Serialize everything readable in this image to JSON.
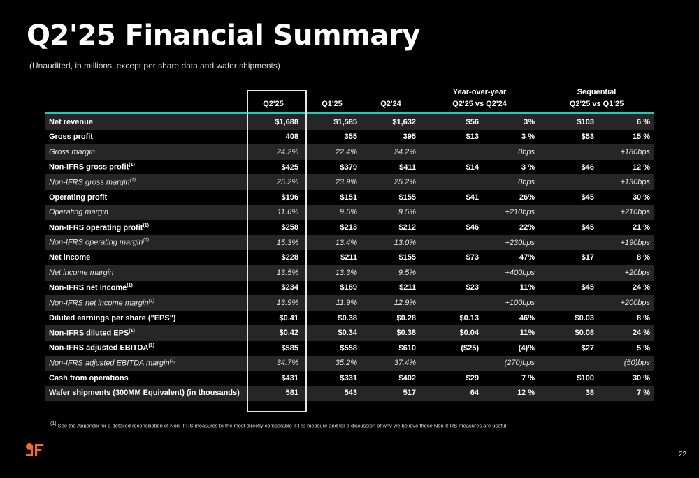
{
  "title": "Q2'25 Financial Summary",
  "subtitle": "(Unaudited, in millions, except per share data and wafer shipments)",
  "groups": {
    "yoy": "Year-over-year",
    "seq": "Sequential"
  },
  "columns": {
    "q2_25": "Q2'25",
    "q1_25": "Q1'25",
    "q2_24": "Q2'24",
    "yoy": "Q2'25 vs Q2'24",
    "seq": "Q2'25 vs Q1'25"
  },
  "rows": [
    {
      "label": "Net revenue",
      "sup": "",
      "style": "alt",
      "v": [
        "$1,688",
        "$1,585",
        "$1,632",
        "$56",
        "3%",
        "$103",
        "6 %"
      ]
    },
    {
      "label": "Gross profit",
      "sup": "",
      "style": "",
      "v": [
        "408",
        "355",
        "395",
        "$13",
        "3 %",
        "$53",
        "15 %"
      ]
    },
    {
      "label": "Gross margin",
      "sup": "",
      "style": "alt italic",
      "v": [
        "24.2%",
        "22.4%",
        "24.2%",
        "",
        "0bps",
        "",
        "+180bps"
      ]
    },
    {
      "label": "Non-IFRS gross profit",
      "sup": "(1)",
      "style": "",
      "v": [
        "$425",
        "$379",
        "$411",
        "$14",
        "3 %",
        "$46",
        "12 %"
      ]
    },
    {
      "label": "Non-IFRS gross margin",
      "sup": "(1)",
      "style": "alt italic",
      "v": [
        "25.2%",
        "23.9%",
        "25.2%",
        "",
        "0bps",
        "",
        "+130bps"
      ]
    },
    {
      "label": "Operating profit",
      "sup": "",
      "style": "",
      "v": [
        "$196",
        "$151",
        "$155",
        "$41",
        "26%",
        "$45",
        "30 %"
      ]
    },
    {
      "label": "Operating margin",
      "sup": "",
      "style": "alt italic",
      "v": [
        "11.6%",
        "9.5%",
        "9.5%",
        "",
        "+210bps",
        "",
        "+210bps"
      ]
    },
    {
      "label": "Non-IFRS operating profit",
      "sup": "(1)",
      "style": "",
      "v": [
        "$258",
        "$213",
        "$212",
        "$46",
        "22%",
        "$45",
        "21 %"
      ]
    },
    {
      "label": "Non-IFRS operating margin",
      "sup": "(1)",
      "style": "alt italic",
      "v": [
        "15.3%",
        "13.4%",
        "13.0%",
        "",
        "+230bps",
        "",
        "+190bps"
      ]
    },
    {
      "label": "Net income",
      "sup": "",
      "style": "",
      "v": [
        "$228",
        "$211",
        "$155",
        "$73",
        "47%",
        "$17",
        "8 %"
      ]
    },
    {
      "label": "Net income margin",
      "sup": "",
      "style": "alt italic",
      "v": [
        "13.5%",
        "13.3%",
        "9.5%",
        "",
        "+400bps",
        "",
        "+20bps"
      ]
    },
    {
      "label": "Non-IFRS net income",
      "sup": "(1)",
      "style": "",
      "v": [
        "$234",
        "$189",
        "$211",
        "$23",
        "11%",
        "$45",
        "24 %"
      ]
    },
    {
      "label": "Non-IFRS net income margin",
      "sup": "(1)",
      "style": "alt italic",
      "v": [
        "13.9%",
        "11.9%",
        "12.9%",
        "",
        "+100bps",
        "",
        "+200bps"
      ]
    },
    {
      "label": "Diluted earnings per share (\"EPS\")",
      "sup": "",
      "style": "",
      "v": [
        "$0.41",
        "$0.38",
        "$0.28",
        "$0.13",
        "46%",
        "$0.03",
        "8 %"
      ]
    },
    {
      "label": "Non-IFRS diluted EPS",
      "sup": "(1)",
      "style": "alt",
      "v": [
        "$0.42",
        "$0.34",
        "$0.38",
        "$0.04",
        "11%",
        "$0.08",
        "24 %"
      ]
    },
    {
      "label": "Non-IFRS adjusted EBITDA",
      "sup": "(1)",
      "style": "",
      "v": [
        "$585",
        "$558",
        "$610",
        "($25)",
        "(4)%",
        "$27",
        "5 %"
      ]
    },
    {
      "label": "Non-IFRS adjusted EBITDA margin",
      "sup": "(1)",
      "style": "alt italic",
      "v": [
        "34.7%",
        "35.2%",
        "37.4%",
        "",
        "(270)bps",
        "",
        "(50)bps"
      ]
    },
    {
      "label": "Cash from operations",
      "sup": "",
      "style": "",
      "v": [
        "$431",
        "$331",
        "$402",
        "$29",
        "7 %",
        "$100",
        "30 %"
      ]
    },
    {
      "label": "Wafer shipments (300MM Equivalent) (in thousands)",
      "sup": "",
      "style": "alt",
      "v": [
        "581",
        "543",
        "517",
        "64",
        "12 %",
        "38",
        "7 %"
      ]
    }
  ],
  "footnote_marker": "(1)",
  "footnote": "See the Appendix for a detailed reconciliation of Non-IFRS measures to the most directly comparable IFRS measure and for a discussion of why we believe these Non-IFRS measures are useful.",
  "logo_icon": "gf-logo-icon",
  "accent_color": "#2ec4b6",
  "logo_color": "#ff6a13",
  "page_number": "22"
}
